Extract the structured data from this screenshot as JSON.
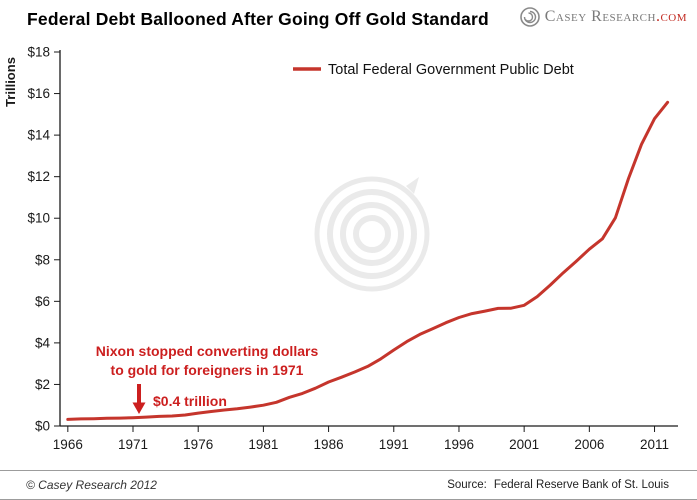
{
  "header": {
    "title": "Federal Debt Ballooned After Going Off Gold Standard",
    "logo": {
      "brand": "Casey Research",
      "tld": ".com"
    }
  },
  "colors": {
    "line_red": "#c5352c",
    "annotation_red": "#cc1f1f",
    "axis": "#1a1a1a",
    "watermark_gray": "#d9d9d9",
    "brand_gray": "#7a7a7a",
    "brand_red": "#c22b22"
  },
  "chart_data": {
    "type": "line",
    "title": "Federal Debt Ballooned After Going Off Gold Standard",
    "xlabel": "",
    "ylabel": "Trillions",
    "xlim": [
      1965.4,
      2012.8
    ],
    "ylim": [
      0,
      18
    ],
    "grid": false,
    "legend_position": "top-center",
    "x_ticks": [
      1966,
      1971,
      1976,
      1981,
      1986,
      1991,
      1996,
      2001,
      2006,
      2011
    ],
    "y_ticks": [
      0,
      2,
      4,
      6,
      8,
      10,
      12,
      14,
      16,
      18
    ],
    "y_tick_labels": [
      "$0",
      "$2",
      "$4",
      "$6",
      "$8",
      "$10",
      "$12",
      "$14",
      "$16",
      "$18"
    ],
    "series": [
      {
        "name": "Total Federal Government Public Debt",
        "color": "#c5352c",
        "x": [
          1966,
          1967,
          1968,
          1969,
          1970,
          1971,
          1972,
          1973,
          1974,
          1975,
          1976,
          1977,
          1978,
          1979,
          1980,
          1981,
          1982,
          1983,
          1984,
          1985,
          1986,
          1987,
          1988,
          1989,
          1990,
          1991,
          1992,
          1993,
          1994,
          1995,
          1996,
          1997,
          1998,
          1999,
          2000,
          2001,
          2002,
          2003,
          2004,
          2005,
          2006,
          2007,
          2008,
          2009,
          2010,
          2011,
          2012
        ],
        "values": [
          0.32,
          0.34,
          0.35,
          0.37,
          0.38,
          0.4,
          0.43,
          0.46,
          0.48,
          0.53,
          0.62,
          0.7,
          0.77,
          0.83,
          0.91,
          1.0,
          1.14,
          1.38,
          1.57,
          1.82,
          2.12,
          2.35,
          2.6,
          2.87,
          3.23,
          3.66,
          4.06,
          4.41,
          4.69,
          4.97,
          5.22,
          5.41,
          5.53,
          5.66,
          5.67,
          5.81,
          6.23,
          6.78,
          7.38,
          7.93,
          8.51,
          9.01,
          10.02,
          11.91,
          13.56,
          14.79,
          15.58
        ]
      }
    ],
    "annotations": [
      {
        "line1": "Nixon stopped converting dollars",
        "line2": "to gold for foreigners in 1971",
        "arrow_label": "$0.4 trillion",
        "x_year": 1971.6
      }
    ]
  },
  "footer": {
    "copyright": "© Casey Research 2012",
    "source_label": "Source:",
    "source": "Federal Reserve Bank of St. Louis"
  }
}
